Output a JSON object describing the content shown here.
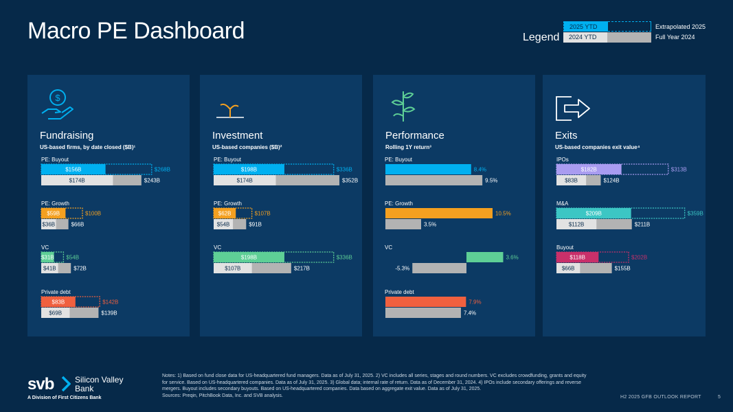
{
  "title": "Macro PE Dashboard",
  "legend": {
    "label": "Legend",
    "items": [
      {
        "label": "2025 YTD",
        "description": "Extrapolated 2025"
      },
      {
        "label": "2024 YTD",
        "description": "Full Year 2024"
      }
    ]
  },
  "chart_data": [
    {
      "type": "bar",
      "title": "Fundraising",
      "subtitle": "US-based firms, by date closed ($B)¹",
      "icon": "money-hand-icon",
      "scale_max": 260,
      "unit_prefix": "$",
      "unit_suffix": "B",
      "categories": [
        {
          "name": "PE: Buyout",
          "color": "#00b0f0",
          "ytd_2025": 156,
          "extrap_2025": 268,
          "ytd_2024": 174,
          "full_2024": 243
        },
        {
          "name": "PE: Growth",
          "color": "#f4a020",
          "ytd_2025": 59,
          "extrap_2025": 100,
          "ytd_2024": 36,
          "full_2024": 66
        },
        {
          "name": "VC",
          "color": "#5ecf96",
          "ytd_2025": 31,
          "extrap_2025": 54,
          "ytd_2024": 41,
          "full_2024": 72
        },
        {
          "name": "Private debt",
          "color": "#f0603f",
          "ytd_2025": 83,
          "extrap_2025": 142,
          "ytd_2024": 69,
          "full_2024": 139
        }
      ]
    },
    {
      "type": "bar",
      "title": "Investment",
      "subtitle": "US-based companies ($B)²",
      "icon": "sprout-icon",
      "scale_max": 300,
      "unit_prefix": "$",
      "unit_suffix": "B",
      "categories": [
        {
          "name": "PE: Buyout",
          "color": "#00b0f0",
          "ytd_2025": 198,
          "extrap_2025": 336,
          "ytd_2024": 174,
          "full_2024": 352
        },
        {
          "name": "PE: Growth",
          "color": "#f4a020",
          "ytd_2025": 62,
          "extrap_2025": 107,
          "ytd_2024": 54,
          "full_2024": 91
        },
        {
          "name": "VC",
          "color": "#5ecf96",
          "ytd_2025": 198,
          "extrap_2025": 336,
          "ytd_2024": 107,
          "full_2024": 217
        }
      ]
    },
    {
      "type": "bar",
      "title": "Performance",
      "subtitle": "Rolling 1Y return³",
      "icon": "plant-icon",
      "scale_max": 10.5,
      "unit_prefix": "",
      "unit_suffix": "%",
      "categories": [
        {
          "name": "PE: Buyout",
          "color": "#00b0f0",
          "value_2025": 8.4,
          "value_2024": 9.5
        },
        {
          "name": "PE: Growth",
          "color": "#f4a020",
          "value_2025": 10.5,
          "value_2024": 3.5
        },
        {
          "name": "VC",
          "color": "#5ecf96",
          "value_2025": 3.6,
          "value_2024": -5.3
        },
        {
          "name": "Private debt",
          "color": "#f0603f",
          "value_2025": 7.9,
          "value_2024": 7.4
        }
      ]
    },
    {
      "type": "bar",
      "title": "Exits",
      "subtitle": "US-based companies exit value⁴",
      "icon": "exit-arrow-icon",
      "scale_max": 300,
      "unit_prefix": "$",
      "unit_suffix": "B",
      "categories": [
        {
          "name": "IPOs",
          "color": "#a99cf0",
          "ytd_2025": 182,
          "extrap_2025": 313,
          "ytd_2024": 83,
          "full_2024": 124
        },
        {
          "name": "M&A",
          "color": "#3cc6c4",
          "ytd_2025": 209,
          "extrap_2025": 359,
          "ytd_2024": 112,
          "full_2024": 211
        },
        {
          "name": "Buyout",
          "color": "#c9306a",
          "ytd_2025": 118,
          "extrap_2025": 202,
          "ytd_2024": 66,
          "full_2024": 155
        }
      ]
    }
  ],
  "notes": "Notes: 1) Based on fund close data for US-headquartered fund managers. Data as of July 31, 2025. 2) VC includes all series, stages and round numbers. VC excludes crowdfunding, grants and equity for service. Based on US-headquartered companies. Data as of July 31, 2025. 3) Global data; internal rate of return. Data as of December 31, 2024. 4) IPOs include secondary offerings and reverse mergers. Buyout includes secondary buyouts. Based on US-headquartered companies. Data based on aggregate exit value. Data as of July 31, 2025.",
  "sources": "Sources: Preqin, PitchBook Data, Inc. and SVB analysis.",
  "footer": {
    "report": "H2 2025 GFB OUTLOOK REPORT",
    "page": "5"
  },
  "logo": {
    "svb": "svb",
    "name": "Silicon Valley Bank",
    "division": "A Division of First Citizens Bank"
  }
}
